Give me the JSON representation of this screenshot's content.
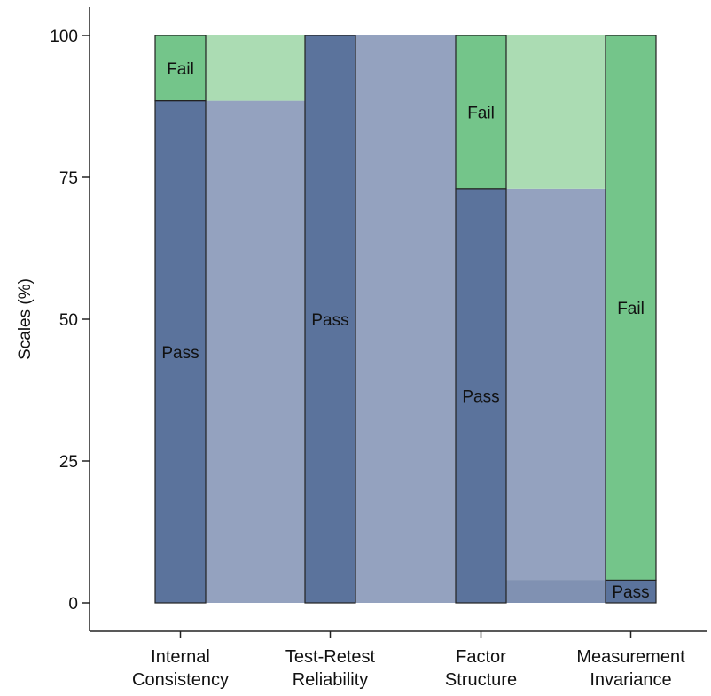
{
  "chart_data": {
    "type": "bar",
    "subtype": "stacked-alluvial",
    "ylabel": "Scales (%)",
    "xlabel": "",
    "ylim": [
      0,
      100
    ],
    "yticks": [
      0,
      25,
      50,
      75,
      100
    ],
    "categories": [
      [
        "Internal",
        "Consistency"
      ],
      [
        "Test-Retest",
        "Reliability"
      ],
      [
        "Factor",
        "Structure"
      ],
      [
        "Measurement",
        "Invariance"
      ]
    ],
    "series": [
      {
        "name": "Pass",
        "values": [
          88.5,
          100,
          73,
          4
        ]
      },
      {
        "name": "Fail",
        "values": [
          11.5,
          0,
          27,
          96
        ]
      }
    ],
    "segment_labels": [
      {
        "category": 0,
        "series": "Fail",
        "text": "Fail"
      },
      {
        "category": 0,
        "series": "Pass",
        "text": "Pass"
      },
      {
        "category": 1,
        "series": "Pass",
        "text": "Pass"
      },
      {
        "category": 2,
        "series": "Fail",
        "text": "Fail"
      },
      {
        "category": 2,
        "series": "Pass",
        "text": "Pass"
      },
      {
        "category": 3,
        "series": "Fail",
        "text": "Fail"
      },
      {
        "category": 3,
        "series": "Pass",
        "text": "Pass"
      }
    ],
    "colors": {
      "pass": "#5b739c",
      "fail": "#74c58a",
      "flow_pass": "#94a2bf",
      "flow_fail": "#abdcb3",
      "axis": "#222222"
    },
    "grid": false,
    "legend": "none"
  }
}
